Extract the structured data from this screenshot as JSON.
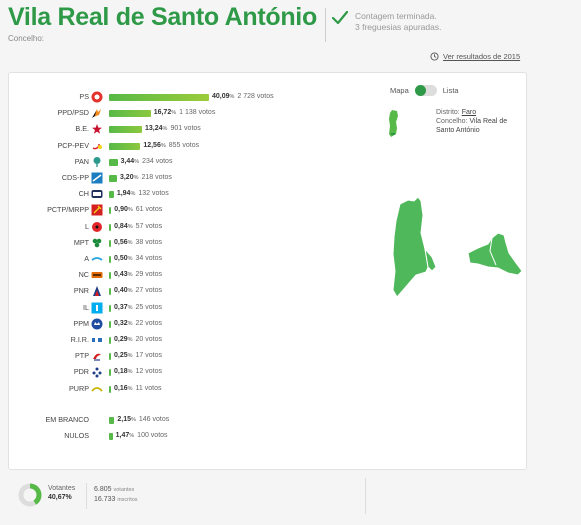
{
  "header": {
    "title": "Vila Real de Santo António",
    "subtitle": "Concelho:",
    "status_line1": "Contagem terminada.",
    "status_line2": "3 freguesias apuradas.",
    "history_link": "Ver resultados de 2015"
  },
  "view_toggle": {
    "left_label": "Mapa",
    "right_label": "Lista",
    "selected": "Mapa"
  },
  "location": {
    "district_label": "Distrito:",
    "district": "Faro",
    "council_label": "Concelho:",
    "council_line1": "Vila Real de",
    "council_line2": "Santo António"
  },
  "colors": {
    "accent": "#2e9a48",
    "bar_top": "#9ccc3a",
    "bar": "#57b947",
    "bar_blank": "#57b947"
  },
  "results": [
    {
      "party": "PS",
      "pct": "40,09",
      "pct_value": 40.09,
      "votes": "2 728 votos",
      "logo_icon": "ps-fist-rose-icon"
    },
    {
      "party": "PPD/PSD",
      "pct": "16,72",
      "pct_value": 16.72,
      "votes": "1 138 votos",
      "logo_icon": "psd-arrows-icon"
    },
    {
      "party": "B.E.",
      "pct": "13,24",
      "pct_value": 13.24,
      "votes": "901 votos",
      "logo_icon": "be-star-icon"
    },
    {
      "party": "PCP-PEV",
      "pct": "12,56",
      "pct_value": 12.56,
      "votes": "855 votos",
      "logo_icon": "cdu-hammer-sickle-icon"
    },
    {
      "party": "PAN",
      "pct": "3,44",
      "pct_value": 3.44,
      "votes": "234 votos",
      "logo_icon": "pan-tree-icon"
    },
    {
      "party": "CDS-PP",
      "pct": "3,20",
      "pct_value": 3.2,
      "votes": "218 votos",
      "logo_icon": "cds-flag-icon"
    },
    {
      "party": "CH",
      "pct": "1,94",
      "pct_value": 1.94,
      "votes": "132 votos",
      "logo_icon": "chega-icon"
    },
    {
      "party": "PCTP/MRPP",
      "pct": "0,90",
      "pct_value": 0.9,
      "votes": "61 votos",
      "logo_icon": "mrpp-hammer-icon"
    },
    {
      "party": "L",
      "pct": "0,84",
      "pct_value": 0.84,
      "votes": "57 votos",
      "logo_icon": "livre-poppy-icon"
    },
    {
      "party": "MPT",
      "pct": "0,56",
      "pct_value": 0.56,
      "votes": "38 votos",
      "logo_icon": "mpt-clover-icon"
    },
    {
      "party": "A",
      "pct": "0,50",
      "pct_value": 0.5,
      "votes": "34 votos",
      "logo_icon": "alianca-icon"
    },
    {
      "party": "NC",
      "pct": "0,43",
      "pct_value": 0.43,
      "votes": "29 votos",
      "logo_icon": "nc-icon"
    },
    {
      "party": "PNR",
      "pct": "0,40",
      "pct_value": 0.4,
      "votes": "27 votos",
      "logo_icon": "pnr-flame-icon"
    },
    {
      "party": "IL",
      "pct": "0,37",
      "pct_value": 0.37,
      "votes": "25 votos",
      "logo_icon": "il-icon"
    },
    {
      "party": "PPM",
      "pct": "0,32",
      "pct_value": 0.32,
      "votes": "22 votos",
      "logo_icon": "ppm-crown-icon"
    },
    {
      "party": "R.I.R.",
      "pct": "0,29",
      "pct_value": 0.29,
      "votes": "20 votos",
      "logo_icon": "rir-icon"
    },
    {
      "party": "PTP",
      "pct": "0,25",
      "pct_value": 0.25,
      "votes": "17 votos",
      "logo_icon": "ptp-icon"
    },
    {
      "party": "PDR",
      "pct": "0,18",
      "pct_value": 0.18,
      "votes": "12 votos",
      "logo_icon": "pdr-icon"
    },
    {
      "party": "PURP",
      "pct": "0,16",
      "pct_value": 0.16,
      "votes": "11 votos",
      "logo_icon": "purp-icon"
    }
  ],
  "blank_null": [
    {
      "party": "EM BRANCO",
      "pct": "2,15",
      "pct_value": 2.15,
      "votes": "146 votos"
    },
    {
      "party": "NULOS",
      "pct": "1,47",
      "pct_value": 1.47,
      "votes": "100 votos"
    }
  ],
  "pct_unit": "%",
  "footer": {
    "voters_label": "Votantes",
    "voters_pct": "40,67%",
    "voters_fraction": 0.4067,
    "voters_count": "6.805",
    "voters_suffix": "votantes",
    "registered_count": "16.733",
    "registered_suffix": "inscritos"
  }
}
